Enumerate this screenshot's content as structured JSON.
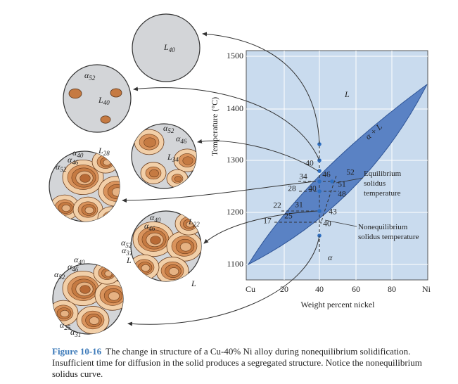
{
  "axes": {
    "y_label": "Temperature (°C)",
    "x_label": "Weight percent nickel",
    "y_ticks": [
      "1500",
      "1400",
      "1300",
      "1200",
      "1100"
    ],
    "x_ticks": [
      "Cu",
      "20",
      "40",
      "60",
      "80",
      "Ni"
    ]
  },
  "regions": {
    "liquid": "L",
    "two_phase": "α + L",
    "solid": "α"
  },
  "point_labels": [
    "40",
    "34",
    "46",
    "52",
    "28",
    "40",
    "51",
    "48",
    "22",
    "31",
    "25",
    "43",
    "17",
    "40"
  ],
  "callouts": {
    "equilibrium": "Equilibrium solidus temperature",
    "nonequilibrium": "Nonequilibrium solidus temperature"
  },
  "microstructures": [
    {
      "labels": [
        {
          "symbol": "L",
          "sub": "40"
        }
      ]
    },
    {
      "labels": [
        {
          "symbol": "α",
          "sub": "52"
        },
        {
          "symbol": "L",
          "sub": "40"
        }
      ]
    },
    {
      "labels": [
        {
          "symbol": "α",
          "sub": "52"
        },
        {
          "symbol": "α",
          "sub": "46"
        },
        {
          "symbol": "L",
          "sub": "34"
        }
      ]
    },
    {
      "labels": [
        {
          "symbol": "α",
          "sub": "40"
        },
        {
          "symbol": "α",
          "sub": "46"
        },
        {
          "symbol": "α",
          "sub": "52"
        },
        {
          "symbol": "L",
          "sub": "28"
        }
      ]
    },
    {
      "labels": [
        {
          "symbol": "α",
          "sub": "40"
        },
        {
          "symbol": "α",
          "sub": "46"
        },
        {
          "symbol": "L",
          "sub": "22"
        },
        {
          "symbol": "α",
          "sub": "52"
        },
        {
          "symbol": "α",
          "sub": "31"
        },
        {
          "symbol": "L",
          "sub": ""
        },
        {
          "symbol": "L",
          "sub": ""
        }
      ]
    },
    {
      "labels": [
        {
          "symbol": "α",
          "sub": "40"
        },
        {
          "symbol": "α",
          "sub": "46"
        },
        {
          "symbol": "α",
          "sub": "52"
        },
        {
          "symbol": "α",
          "sub": "25"
        },
        {
          "symbol": "α",
          "sub": "31"
        }
      ]
    }
  ],
  "caption": {
    "label": "Figure 10-16",
    "text": "The change in structure of a Cu-40% Ni alloy during nonequilibrium solidification. Insufficient time for diffusion in the solid produces a segregated structure. Notice the nonequilibrium solidus curve."
  }
}
